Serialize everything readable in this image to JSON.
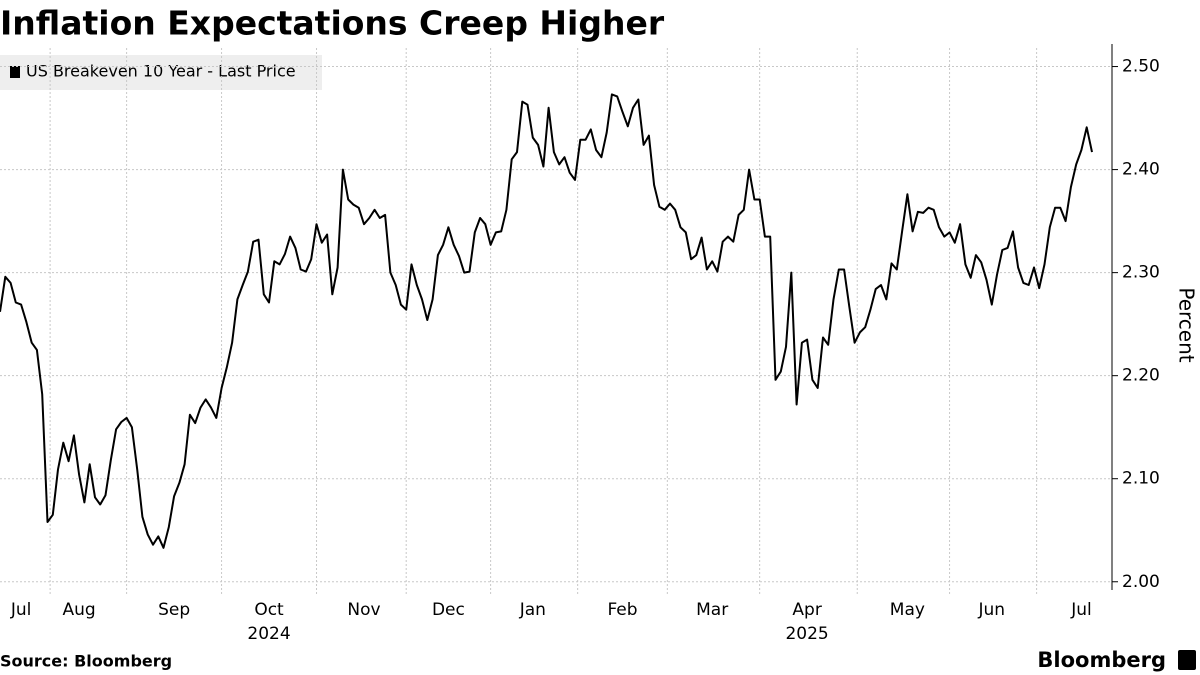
{
  "chart_data": {
    "type": "line",
    "title": "Inflation Expectations Creep Higher",
    "y_label": "Percent",
    "source": "Source: Bloomberg",
    "brand": "Bloomberg",
    "categories": [
      null,
      null,
      null,
      null,
      "Jul",
      null,
      null,
      null,
      null,
      null,
      null,
      null,
      null,
      null,
      null,
      "Aug",
      null,
      null,
      null,
      null,
      null,
      null,
      null,
      null,
      null,
      null,
      null,
      null,
      null,
      null,
      null,
      null,
      null,
      "Sep",
      null,
      null,
      null,
      null,
      null,
      null,
      null,
      null,
      null,
      null,
      null,
      null,
      null,
      null,
      null,
      null,
      null,
      "Oct",
      null,
      null,
      null,
      null,
      null,
      null,
      null,
      null,
      null,
      null,
      null,
      null,
      null,
      null,
      null,
      null,
      null,
      "Nov",
      null,
      null,
      null,
      null,
      null,
      null,
      null,
      null,
      null,
      null,
      null,
      null,
      null,
      null,
      null,
      "Dec",
      null,
      null,
      null,
      null,
      null,
      null,
      null,
      null,
      null,
      null,
      null,
      null,
      null,
      null,
      null,
      "Jan",
      null,
      null,
      null,
      null,
      null,
      null,
      null,
      null,
      null,
      null,
      null,
      null,
      null,
      null,
      null,
      null,
      "Feb",
      null,
      null,
      null,
      null,
      null,
      null,
      null,
      null,
      null,
      null,
      null,
      null,
      null,
      null,
      null,
      null,
      "Mar",
      null,
      null,
      null,
      null,
      null,
      null,
      null,
      null,
      null,
      null,
      null,
      null,
      null,
      null,
      null,
      null,
      null,
      "Apr",
      null,
      null,
      null,
      null,
      null,
      null,
      null,
      null,
      null,
      null,
      null,
      null,
      null,
      null,
      null,
      null,
      null,
      null,
      "May",
      null,
      null,
      null,
      null,
      null,
      null,
      null,
      null,
      null,
      null,
      null,
      null,
      null,
      null,
      null,
      "Jun",
      null,
      null,
      null,
      null,
      null,
      null,
      null,
      null,
      null,
      null,
      null,
      null,
      null,
      null,
      null,
      null,
      "Jul",
      null,
      null
    ],
    "categories_year": [
      null,
      null,
      null,
      null,
      null,
      null,
      null,
      null,
      null,
      null,
      null,
      null,
      null,
      null,
      null,
      null,
      null,
      null,
      null,
      null,
      null,
      null,
      null,
      null,
      null,
      null,
      null,
      null,
      null,
      null,
      null,
      null,
      null,
      null,
      null,
      null,
      null,
      null,
      null,
      null,
      null,
      null,
      null,
      null,
      null,
      null,
      null,
      null,
      null,
      null,
      null,
      "2024",
      null,
      null,
      null,
      null,
      null,
      null,
      null,
      null,
      null,
      null,
      null,
      null,
      null,
      null,
      null,
      null,
      null,
      null,
      null,
      null,
      null,
      null,
      null,
      null,
      null,
      null,
      null,
      null,
      null,
      null,
      null,
      null,
      null,
      null,
      null,
      null,
      null,
      null,
      null,
      null,
      null,
      null,
      null,
      null,
      null,
      null,
      null,
      null,
      null,
      null,
      null,
      null,
      null,
      null,
      null,
      null,
      null,
      null,
      null,
      null,
      null,
      null,
      null,
      null,
      null,
      null,
      null,
      null,
      null,
      null,
      null,
      null,
      null,
      null,
      null,
      null,
      null,
      null,
      null,
      null,
      null,
      null,
      null,
      null,
      null,
      null,
      null,
      null,
      null,
      null,
      null,
      null,
      null,
      null,
      null,
      null,
      null,
      null,
      null,
      null,
      null,
      "2025",
      null,
      null,
      null,
      null,
      null,
      null,
      null,
      null,
      null,
      null,
      null,
      null,
      null,
      null,
      null,
      null,
      null,
      null,
      null,
      null,
      null,
      null,
      null,
      null,
      null,
      null,
      null,
      null,
      null,
      null,
      null,
      null,
      null,
      null,
      null,
      null,
      null,
      null,
      null,
      null,
      null,
      null,
      null,
      null,
      null,
      null,
      null,
      null,
      null,
      null,
      null,
      null,
      null,
      null
    ],
    "series": [
      {
        "name": "US Breakeven 10 Year - Last Price",
        "color": "#000000",
        "values": [
          2.262,
          2.296,
          2.29,
          2.271,
          2.269,
          2.252,
          2.232,
          2.225,
          2.182,
          2.058,
          2.065,
          2.109,
          2.135,
          2.117,
          2.142,
          2.104,
          2.077,
          2.114,
          2.082,
          2.075,
          2.084,
          2.118,
          2.148,
          2.155,
          2.159,
          2.15,
          2.109,
          2.063,
          2.046,
          2.036,
          2.044,
          2.033,
          2.053,
          2.083,
          2.096,
          2.114,
          2.162,
          2.154,
          2.169,
          2.177,
          2.169,
          2.159,
          2.188,
          2.208,
          2.232,
          2.274,
          2.288,
          2.301,
          2.33,
          2.332,
          2.279,
          2.271,
          2.311,
          2.308,
          2.318,
          2.335,
          2.324,
          2.303,
          2.301,
          2.313,
          2.347,
          2.329,
          2.337,
          2.279,
          2.305,
          2.4,
          2.371,
          2.366,
          2.363,
          2.347,
          2.353,
          2.361,
          2.353,
          2.356,
          2.3,
          2.288,
          2.269,
          2.264,
          2.308,
          2.288,
          2.274,
          2.254,
          2.274,
          2.317,
          2.327,
          2.344,
          2.327,
          2.316,
          2.3,
          2.301,
          2.339,
          2.353,
          2.347,
          2.327,
          2.339,
          2.34,
          2.361,
          2.41,
          2.417,
          2.466,
          2.463,
          2.431,
          2.424,
          2.403,
          2.46,
          2.417,
          2.405,
          2.412,
          2.397,
          2.39,
          2.429,
          2.429,
          2.439,
          2.419,
          2.412,
          2.436,
          2.473,
          2.471,
          2.456,
          2.442,
          2.46,
          2.468,
          2.424,
          2.433,
          2.385,
          2.364,
          2.361,
          2.367,
          2.361,
          2.344,
          2.339,
          2.313,
          2.317,
          2.334,
          2.303,
          2.311,
          2.301,
          2.33,
          2.335,
          2.33,
          2.356,
          2.361,
          2.4,
          2.371,
          2.371,
          2.335,
          2.335,
          2.196,
          2.204,
          2.228,
          2.3,
          2.172,
          2.232,
          2.235,
          2.196,
          2.188,
          2.237,
          2.23,
          2.274,
          2.303,
          2.303,
          2.267,
          2.232,
          2.242,
          2.247,
          2.264,
          2.284,
          2.288,
          2.274,
          2.309,
          2.303,
          2.34,
          2.376,
          2.34,
          2.359,
          2.358,
          2.363,
          2.361,
          2.344,
          2.335,
          2.339,
          2.329,
          2.347,
          2.308,
          2.295,
          2.317,
          2.31,
          2.293,
          2.269,
          2.298,
          2.322,
          2.324,
          2.34,
          2.305,
          2.29,
          2.288,
          2.305,
          2.285,
          2.308,
          2.344,
          2.363,
          2.363,
          2.35,
          2.383,
          2.405,
          2.419,
          2.441,
          2.417
        ]
      }
    ],
    "ylim": [
      1.992,
      2.518
    ],
    "yticks": [
      {
        "value": 2,
        "label": "2.00"
      },
      {
        "value": 2.1,
        "label": "2.10"
      },
      {
        "value": 2.2,
        "label": "2.20"
      },
      {
        "value": 2.3,
        "label": "2.30"
      },
      {
        "value": 2.4,
        "label": "2.40"
      },
      {
        "value": 2.5,
        "label": "2.50"
      }
    ],
    "grid": true,
    "legend": "top-left"
  }
}
